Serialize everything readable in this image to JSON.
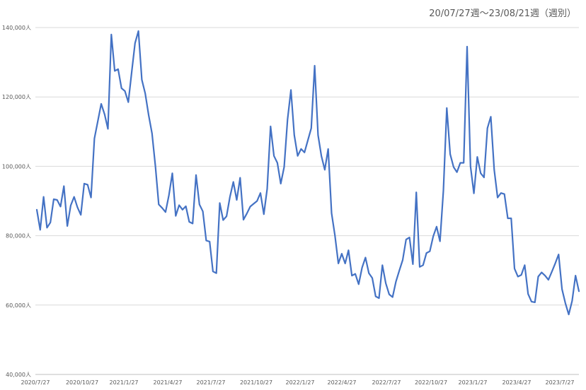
{
  "chart_data": {
    "type": "line",
    "subtitle": "20/07/27週〜23/08/21週（週別）",
    "xlabel": "",
    "ylabel": "",
    "ylim": [
      40000,
      140000
    ],
    "y_ticks": [
      "40,000人",
      "60,000人",
      "80,000人",
      "100,000人",
      "120,000人",
      "140,000人"
    ],
    "x_ticks": [
      "2020/7/27",
      "2020/10/27",
      "2021/1/27",
      "2021/4/27",
      "2021/7/27",
      "2021/10/27",
      "2022/1/27",
      "2022/4/27",
      "2022/7/27",
      "2022/10/27",
      "2023/1/27",
      "2023/4/27",
      "2023/7/27"
    ],
    "grid": true,
    "legend": "none",
    "colors": {
      "line": "#4472C4",
      "grid": "#d9d9d9",
      "axis": "#bfbfbf"
    },
    "series": [
      {
        "values": [
          87500,
          81700,
          91200,
          82300,
          83800,
          90500,
          90300,
          88400,
          94300,
          82800,
          88700,
          91200,
          88200,
          86000,
          95000,
          94700,
          91000,
          108000,
          113000,
          118000,
          115000,
          110800,
          138000,
          127500,
          128000,
          122500,
          121700,
          118500,
          127000,
          135500,
          139000,
          125000,
          121000,
          114800,
          109500,
          100000,
          89000,
          88000,
          86800,
          91700,
          98000,
          85700,
          88800,
          87500,
          88500,
          84000,
          83500,
          97500,
          89000,
          87000,
          78600,
          78300,
          69700,
          69200,
          89400,
          84500,
          85600,
          91200,
          95500,
          90300,
          96700,
          84600,
          86400,
          88400,
          89200,
          90000,
          92300,
          86200,
          93500,
          111500,
          103000,
          101000,
          95000,
          99800,
          113500,
          122000,
          109000,
          103000,
          105000,
          104000,
          107500,
          111000,
          129000,
          109000,
          103000,
          99000,
          105000,
          86500,
          80000,
          72000,
          74800,
          72000,
          75800,
          68500,
          69000,
          66000,
          70800,
          73700,
          69200,
          67800,
          62500,
          62000,
          71500,
          66300,
          63100,
          62300,
          66800,
          70000,
          73000,
          78900,
          79500,
          71800,
          92500,
          71000,
          71500,
          75000,
          75500,
          79800,
          82600,
          78400,
          93000,
          116800,
          103500,
          99800,
          98300,
          101000,
          101000,
          134500,
          100000,
          92200,
          102700,
          98000,
          96800,
          111000,
          114300,
          99000,
          91000,
          92300,
          92000,
          85000,
          85000,
          70500,
          68200,
          68700,
          71500,
          63200,
          61000,
          60800,
          68200,
          69400,
          68500,
          67300,
          69600,
          72000,
          74600,
          64600,
          60600,
          57300,
          61200,
          68500,
          64000
        ]
      }
    ]
  }
}
